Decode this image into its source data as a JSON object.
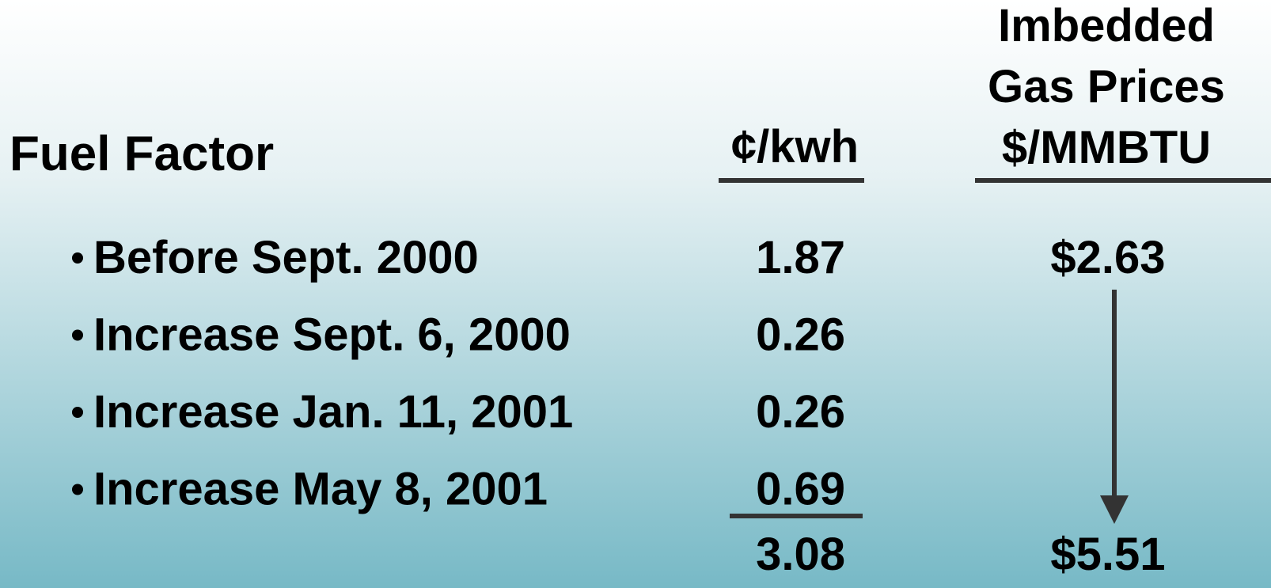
{
  "title": "Fuel Factor",
  "columns": [
    {
      "header": [
        "¢/kwh"
      ]
    },
    {
      "header": [
        "Imbedded",
        "Gas Prices",
        "$/MMBTU"
      ]
    }
  ],
  "rows": [
    {
      "label": "Before Sept. 2000",
      "kwh": "1.87",
      "gas": "$2.63"
    },
    {
      "label": "Increase Sept. 6, 2000",
      "kwh": "0.26"
    },
    {
      "label": "Increase Jan. 11, 2001",
      "kwh": "0.26"
    },
    {
      "label": "Increase May 8, 2001",
      "kwh": "0.69"
    }
  ],
  "total": {
    "kwh": "3.08",
    "gas": "$5.51"
  }
}
